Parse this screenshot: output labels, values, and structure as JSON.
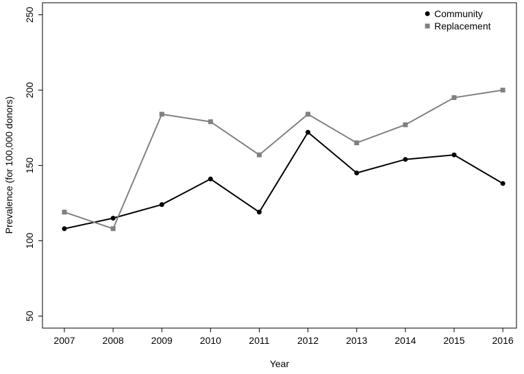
{
  "chart_data": {
    "type": "line",
    "x": [
      2007,
      2008,
      2009,
      2010,
      2011,
      2012,
      2013,
      2014,
      2015,
      2016
    ],
    "series": [
      {
        "name": "Community",
        "color": "#000000",
        "marker": "circle",
        "values": [
          108,
          115,
          124,
          141,
          119,
          172,
          145,
          154,
          157,
          138
        ]
      },
      {
        "name": "Replacement",
        "color": "#808080",
        "marker": "square",
        "values": [
          119,
          108,
          184,
          179,
          157,
          184,
          165,
          177,
          195,
          200
        ]
      }
    ],
    "xlabel": "Year",
    "ylabel": "Prevalence (for 100,000 donors)",
    "xlim": [
      2006.55,
      2016.28
    ],
    "ylim": [
      42,
      258
    ],
    "xticks": [
      2007,
      2008,
      2009,
      2010,
      2011,
      2012,
      2013,
      2014,
      2015,
      2016
    ],
    "yticks": [
      50,
      100,
      150,
      200,
      250
    ],
    "legend": "top-right"
  }
}
